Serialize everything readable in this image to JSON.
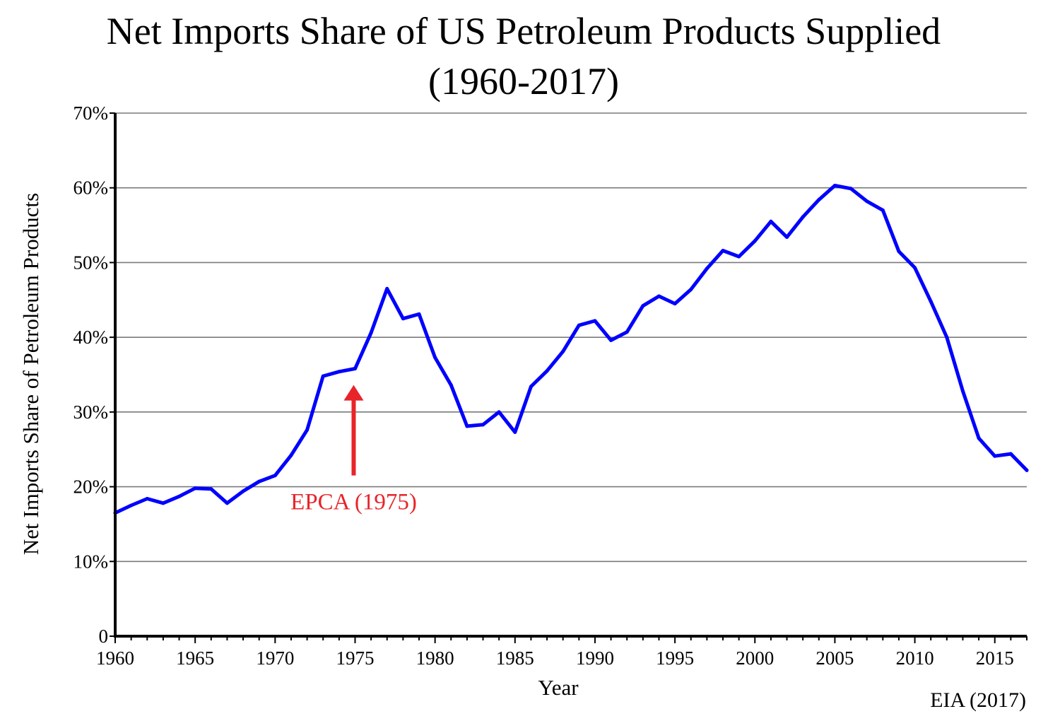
{
  "chart_data": {
    "type": "line",
    "title": "Net Imports Share of US Petroleum Products Supplied",
    "subtitle": "(1960-2017)",
    "xlabel": "Year",
    "ylabel": "Net Imports Share of Petroleum Products",
    "xlim": [
      1960,
      2017
    ],
    "ylim": [
      0,
      70
    ],
    "x_ticks": [
      1960,
      1965,
      1970,
      1975,
      1980,
      1985,
      1990,
      1995,
      2000,
      2005,
      2010,
      2015
    ],
    "y_ticks": [
      0,
      10,
      20,
      30,
      40,
      50,
      60,
      70
    ],
    "y_tick_labels": [
      "0",
      "10%",
      "20%",
      "30%",
      "40%",
      "50%",
      "60%",
      "70%"
    ],
    "grid": "horizontal",
    "series": [
      {
        "color": "#0000ff",
        "x": [
          1960,
          1961,
          1962,
          1963,
          1964,
          1965,
          1966,
          1967,
          1968,
          1969,
          1970,
          1971,
          1972,
          1973,
          1974,
          1975,
          1976,
          1977,
          1978,
          1979,
          1980,
          1981,
          1982,
          1983,
          1984,
          1985,
          1986,
          1987,
          1988,
          1989,
          1990,
          1991,
          1992,
          1993,
          1994,
          1995,
          1996,
          1997,
          1998,
          1999,
          2000,
          2001,
          2002,
          2003,
          2004,
          2005,
          2006,
          2007,
          2008,
          2009,
          2010,
          2011,
          2012,
          2013,
          2014,
          2015,
          2016,
          2017
        ],
        "values": [
          16.5,
          17.5,
          18.4,
          17.8,
          18.7,
          19.8,
          19.7,
          17.8,
          19.4,
          20.7,
          21.5,
          24.2,
          27.6,
          34.8,
          35.4,
          35.8,
          40.6,
          46.5,
          42.5,
          43.1,
          37.3,
          33.6,
          28.1,
          28.3,
          30.0,
          27.3,
          33.4,
          35.5,
          38.1,
          41.6,
          42.2,
          39.6,
          40.7,
          44.2,
          45.5,
          44.5,
          46.4,
          49.2,
          51.6,
          50.8,
          52.9,
          55.5,
          53.4,
          56.1,
          58.4,
          60.3,
          59.9,
          58.2,
          57.0,
          51.5,
          49.3,
          44.8,
          40.0,
          32.8,
          26.5,
          24.1,
          24.4,
          22.2
        ]
      }
    ],
    "annotations": [
      {
        "text": "EPCA (1975)",
        "x": 1975,
        "arrow_to_y": 34,
        "color": "#e8242a"
      }
    ],
    "source": "EIA (2017)"
  }
}
